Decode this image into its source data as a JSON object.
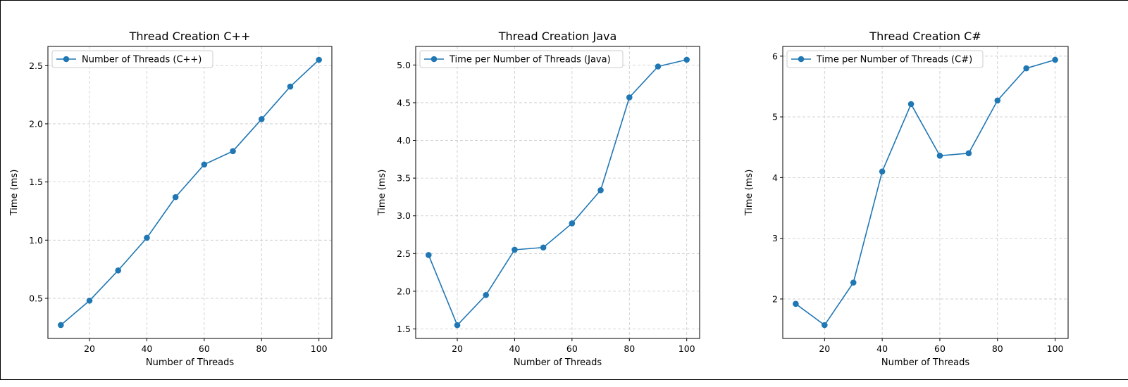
{
  "page": {
    "frame_color": "#000000"
  },
  "chart_data": [
    {
      "type": "line",
      "title": "Thread Creation C++",
      "xlabel": "Number of Threads",
      "ylabel": "Time (ms)",
      "x": [
        10,
        20,
        30,
        40,
        50,
        60,
        70,
        80,
        90,
        100
      ],
      "series": [
        {
          "name": "Number of Threads (C++)",
          "values": [
            0.27,
            0.48,
            0.74,
            1.02,
            1.37,
            1.65,
            1.765,
            2.04,
            2.32,
            2.55
          ]
        }
      ],
      "xlim": [
        5.5,
        104.5
      ],
      "ylim": [
        0.155,
        2.665
      ],
      "xticks": [
        20,
        40,
        60,
        80,
        100
      ],
      "yticks": [
        0.5,
        1.0,
        1.5,
        2.0,
        2.5
      ],
      "ytick_labels": [
        "0.5",
        "1.0",
        "1.5",
        "2.0",
        "2.5"
      ],
      "grid": true,
      "grid_style": "dashed",
      "legend_position": "top-left",
      "color": "#1f77b4",
      "marker": "circle"
    },
    {
      "type": "line",
      "title": "Thread Creation Java",
      "xlabel": "Number of Threads",
      "ylabel": "Time (ms)",
      "x": [
        10,
        20,
        30,
        40,
        50,
        60,
        70,
        80,
        90,
        100
      ],
      "series": [
        {
          "name": "Time per Number of Threads (Java)",
          "values": [
            2.48,
            1.55,
            1.95,
            2.55,
            2.58,
            2.9,
            3.34,
            4.57,
            4.98,
            5.07
          ]
        }
      ],
      "xlim": [
        5.5,
        104.5
      ],
      "ylim": [
        1.374,
        5.246
      ],
      "xticks": [
        20,
        40,
        60,
        80,
        100
      ],
      "yticks": [
        1.5,
        2.0,
        2.5,
        3.0,
        3.5,
        4.0,
        4.5,
        5.0
      ],
      "ytick_labels": [
        "1.5",
        "2.0",
        "2.5",
        "3.0",
        "3.5",
        "4.0",
        "4.5",
        "5.0"
      ],
      "grid": true,
      "grid_style": "dashed",
      "legend_position": "top-left",
      "color": "#1f77b4",
      "marker": "circle"
    },
    {
      "type": "line",
      "title": "Thread Creation C#",
      "xlabel": "Number of Threads",
      "ylabel": "Time (ms)",
      "x": [
        10,
        20,
        30,
        40,
        50,
        60,
        70,
        80,
        90,
        100
      ],
      "series": [
        {
          "name": "Time per Number of Threads (C#)",
          "values": [
            1.92,
            1.57,
            2.27,
            4.1,
            5.21,
            4.36,
            4.4,
            5.27,
            5.8,
            5.94
          ]
        }
      ],
      "xlim": [
        5.5,
        104.5
      ],
      "ylim": [
        1.35,
        6.16
      ],
      "xticks": [
        20,
        40,
        60,
        80,
        100
      ],
      "yticks": [
        2,
        3,
        4,
        5,
        6
      ],
      "ytick_labels": [
        "2",
        "3",
        "4",
        "5",
        "6"
      ],
      "grid": true,
      "grid_style": "dashed",
      "legend_position": "top-left",
      "color": "#1f77b4",
      "marker": "circle"
    }
  ]
}
